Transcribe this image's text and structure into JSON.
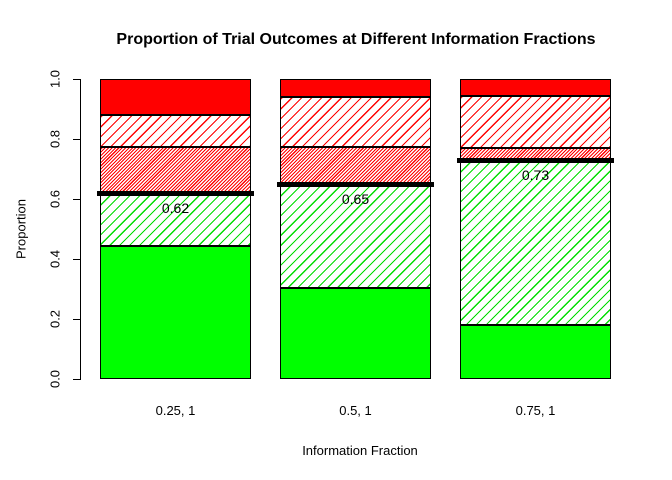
{
  "header": {
    "title": "Proportion of Trial Outcomes at Different Information Fractions"
  },
  "chart_data": {
    "type": "bar",
    "stacked": true,
    "title": "Proportion of Trial Outcomes at Different Information Fractions",
    "xlabel": "Information Fraction",
    "ylabel": "Proportion",
    "ylim": [
      0,
      1
    ],
    "ytick_values": [
      0,
      0.2,
      0.4,
      0.6,
      0.8,
      1.0
    ],
    "ytick_labels": [
      "0.0",
      "0.2",
      "0.4",
      "0.6",
      "0.8",
      "1.0"
    ],
    "categories": [
      "0.25, 1",
      "0.5, 1",
      "0.75, 1"
    ],
    "grid": false,
    "legend": "none",
    "series": [
      {
        "name": "solid-green-segment",
        "pattern": "solid",
        "color": "#00ff00",
        "values": [
          0.445,
          0.305,
          0.18
        ]
      },
      {
        "name": "green-hatch-segment",
        "pattern": "hatch",
        "color": "#00dd00",
        "values": [
          0.175,
          0.345,
          0.55
        ]
      },
      {
        "name": "dense-red-hatch-segment",
        "pattern": "dense-hatch",
        "color": "#ff0000",
        "values": [
          0.155,
          0.125,
          0.04
        ]
      },
      {
        "name": "red-hatch-segment",
        "pattern": "hatch",
        "color": "#ff0000",
        "values": [
          0.105,
          0.165,
          0.175
        ]
      },
      {
        "name": "solid-red-segment",
        "pattern": "solid",
        "color": "#ff0000",
        "values": [
          0.12,
          0.06,
          0.055
        ]
      }
    ],
    "threshold_lines": {
      "color": "#000000",
      "values": [
        0.62,
        0.65,
        0.73
      ],
      "labels": [
        "0.62",
        "0.65",
        "0.73"
      ]
    },
    "colors": {
      "solid_green": "#00ff00",
      "solid_red": "#ff0000",
      "bar_border": "#000000",
      "background": "#ffffff"
    }
  }
}
